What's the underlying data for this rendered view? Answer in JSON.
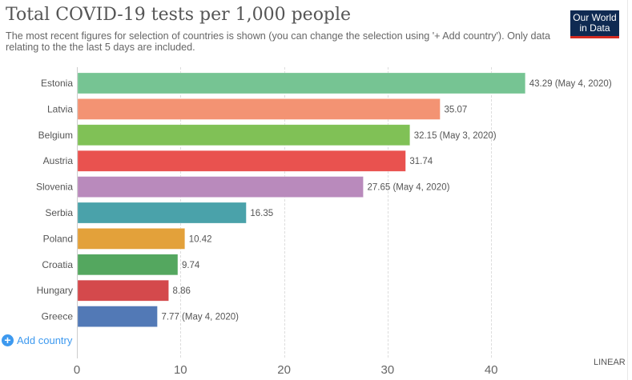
{
  "header": {
    "title": "Total COVID-19 tests per 1,000 people",
    "subtitle": "The most recent figures for selection of countries is shown (you can change the selection using '+ Add country'). Only data relating to the the last 5 days are included.",
    "logo_line1": "Our World",
    "logo_line2": "in Data"
  },
  "controls": {
    "add_country_label": "Add country",
    "scale_label": "LINEAR"
  },
  "chart_data": {
    "type": "bar",
    "orientation": "horizontal",
    "title": "Total COVID-19 tests per 1,000 people",
    "xlabel": "",
    "ylabel": "",
    "xlim": [
      0,
      45
    ],
    "x_ticks": [
      0,
      10,
      20,
      30,
      40
    ],
    "grid": "vertical dashed",
    "categories": [
      "Estonia",
      "Latvia",
      "Belgium",
      "Austria",
      "Slovenia",
      "Serbia",
      "Poland",
      "Croatia",
      "Hungary",
      "Greece"
    ],
    "values": [
      43.29,
      35.07,
      32.15,
      31.74,
      27.65,
      16.35,
      10.42,
      9.74,
      8.86,
      7.77
    ],
    "labels": [
      "43.29 (May 4, 2020)",
      "35.07",
      "32.15 (May 3, 2020)",
      "31.74",
      "27.65 (May 4, 2020)",
      "16.35",
      "10.42",
      "9.74",
      "8.86",
      "7.77 (May 4, 2020)"
    ],
    "colors": [
      "#76c493",
      "#f39373",
      "#80c156",
      "#e9524f",
      "#b98abc",
      "#4aa2aa",
      "#e3a13a",
      "#54a75f",
      "#d4494c",
      "#5279b6"
    ]
  }
}
